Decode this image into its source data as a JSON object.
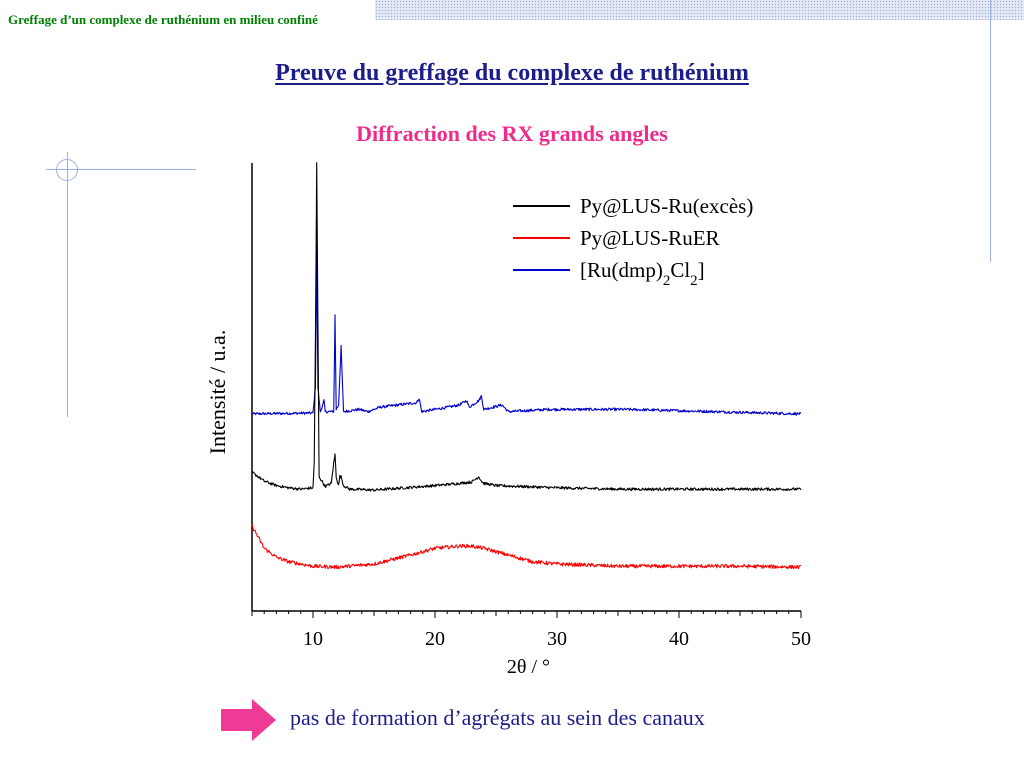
{
  "header": {
    "running_title": "Greffage d’un complexe de ruthénium en milieu confiné"
  },
  "slide": {
    "title": "Preuve du greffage du complexe de ruthénium",
    "subtitle": "Diffraction des RX grands angles",
    "conclusion": "pas de formation d’agrégats au sein des canaux"
  },
  "colors": {
    "title": "#1c1c8a",
    "subtitle": "#ee2c8c",
    "arrow": "#ee3b95",
    "header_text": "#008000"
  },
  "icons": {
    "arrow": "right-arrow-icon"
  },
  "chart_data": {
    "type": "line",
    "xlabel": "2θ / °",
    "ylabel": "Intensité / u.a.",
    "xlim": [
      5,
      50
    ],
    "xticks": [
      10,
      20,
      30,
      40,
      50
    ],
    "yticks_shown": false,
    "grid": false,
    "legend_position": "top-right",
    "series": [
      {
        "name": "Py@LUS-Ru(excès)",
        "legend_html": "Py@LUS-Ru(excès)",
        "color": "#000000",
        "baseline": 0.27,
        "noise": 0.003,
        "x": [
          5.0,
          5.5,
          6.0,
          7.0,
          8.0,
          9.0,
          10.0,
          10.1,
          10.2,
          10.3,
          10.4,
          10.5,
          11.0,
          11.5,
          11.7,
          11.8,
          11.9,
          12.1,
          12.2,
          12.3,
          12.5,
          13.0,
          15.0,
          20.0,
          22.0,
          23.0,
          23.6,
          23.8,
          24.0,
          25.0,
          30.0,
          35.0,
          40.0,
          45.0,
          50.0
        ],
        "y": [
          0.31,
          0.3,
          0.29,
          0.28,
          0.275,
          0.272,
          0.275,
          0.33,
          0.6,
          1.0,
          0.65,
          0.3,
          0.278,
          0.285,
          0.33,
          0.35,
          0.3,
          0.28,
          0.3,
          0.3,
          0.28,
          0.272,
          0.27,
          0.28,
          0.285,
          0.288,
          0.3,
          0.29,
          0.285,
          0.28,
          0.275,
          0.272,
          0.272,
          0.272,
          0.272
        ]
      },
      {
        "name": "Py@LUS-RuER",
        "legend_html": "Py@LUS-RuER",
        "color": "#ff0000",
        "baseline": 0.1,
        "noise": 0.004,
        "x": [
          5.0,
          5.5,
          6.0,
          7.0,
          8.0,
          10.0,
          12.0,
          15.0,
          18.0,
          20.0,
          22.0,
          23.0,
          24.0,
          26.0,
          28.0,
          30.0,
          35.0,
          40.0,
          45.0,
          50.0
        ],
        "y": [
          0.19,
          0.165,
          0.14,
          0.12,
          0.11,
          0.1,
          0.098,
          0.105,
          0.125,
          0.14,
          0.145,
          0.145,
          0.14,
          0.125,
          0.11,
          0.105,
          0.1,
          0.1,
          0.1,
          0.098
        ]
      },
      {
        "name": "[Ru(dmp)2Cl2]",
        "legend_html": "[Ru(dmp)<tspan baseline-shift='sub' font-size='15'>2</tspan>Cl<tspan baseline-shift='sub' font-size='15'>2</tspan>]",
        "color": "#0000cc",
        "baseline": 0.44,
        "noise": 0.003,
        "x": [
          5.0,
          10.0,
          10.2,
          10.3,
          10.4,
          10.6,
          10.8,
          10.9,
          11.0,
          11.7,
          11.8,
          11.9,
          12.1,
          12.3,
          12.5,
          13.8,
          14.5,
          15.5,
          18.5,
          18.7,
          18.9,
          21.1,
          22.0,
          22.6,
          22.8,
          23.6,
          23.8,
          24.0,
          25.5,
          26.0,
          29.3,
          35.7,
          38.7,
          50.0
        ],
        "y": [
          0.44,
          0.442,
          0.5,
          0.82,
          0.5,
          0.445,
          0.46,
          0.47,
          0.445,
          0.445,
          0.66,
          0.45,
          0.46,
          0.59,
          0.445,
          0.45,
          0.445,
          0.455,
          0.465,
          0.475,
          0.445,
          0.455,
          0.46,
          0.47,
          0.455,
          0.47,
          0.48,
          0.45,
          0.46,
          0.445,
          0.45,
          0.45,
          0.448,
          0.44
        ]
      }
    ]
  }
}
